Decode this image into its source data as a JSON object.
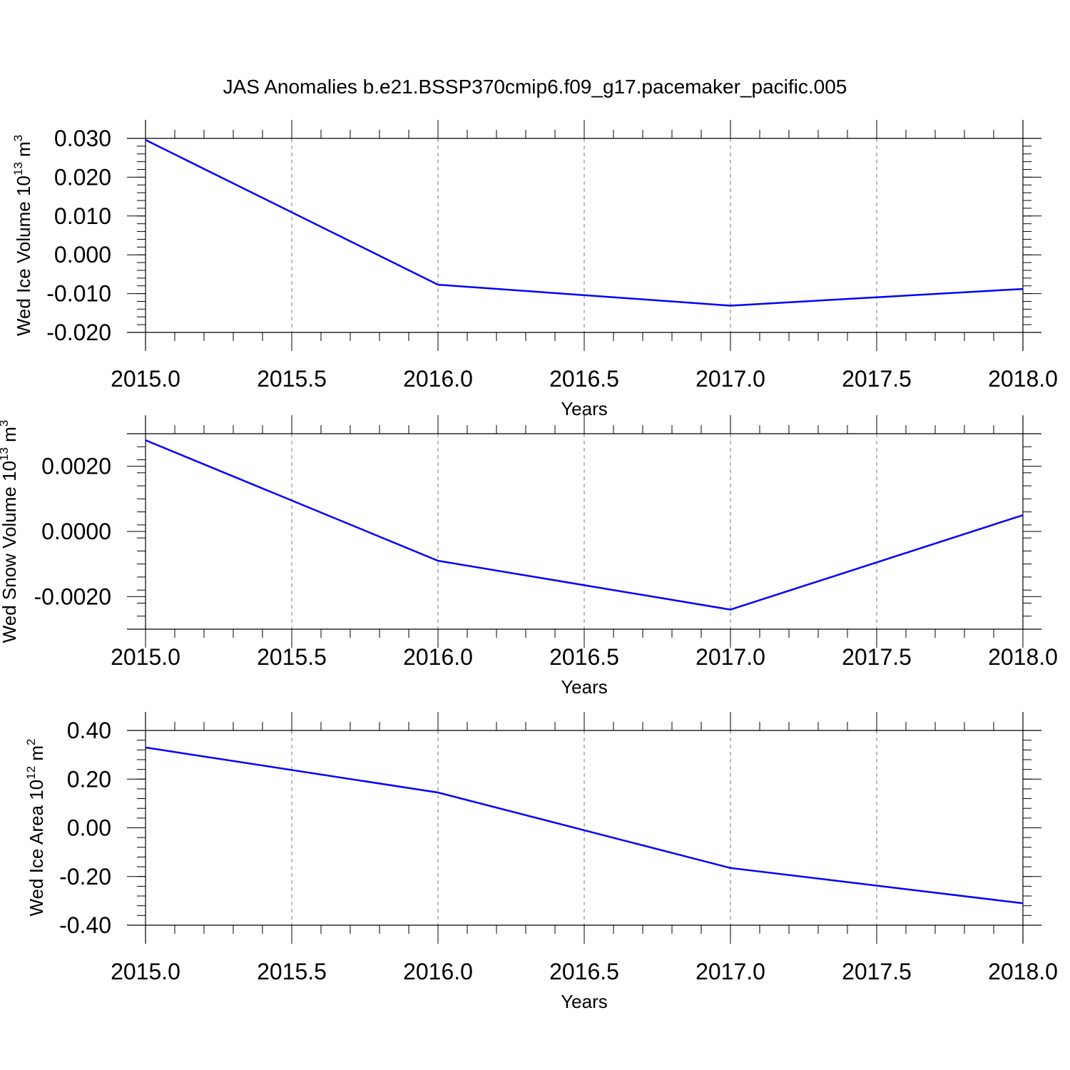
{
  "title": "JAS Anomalies b.e21.BSSP370cmip6.f09_g17.pacemaker_pacific.005",
  "chart_data": [
    {
      "type": "line",
      "ylabel": {
        "text": "Wed Ice Volume 10",
        "sup": "13",
        "unit": " m",
        "unit_sup": "3"
      },
      "xlabel": "Years",
      "xlim": [
        2015.0,
        2018.0
      ],
      "ylim": [
        -0.02,
        0.03
      ],
      "xticks": [
        "2015.0",
        "2015.5",
        "2016.0",
        "2016.5",
        "2017.0",
        "2017.5",
        "2018.0"
      ],
      "yticks": [
        {
          "value": 0.03,
          "label": "0.030"
        },
        {
          "value": 0.02,
          "label": "0.020"
        },
        {
          "value": 0.01,
          "label": "0.010"
        },
        {
          "value": 0.0,
          "label": "0.000"
        },
        {
          "value": -0.01,
          "label": "-0.010"
        },
        {
          "value": -0.02,
          "label": "-0.020"
        }
      ],
      "series_color": "#0000ff",
      "x": [
        2015,
        2016,
        2017,
        2018
      ],
      "y": [
        0.0296,
        -0.0077,
        -0.0131,
        -0.0088
      ]
    },
    {
      "type": "line",
      "ylabel": {
        "text": "Wed Snow Volume 10",
        "sup": "13",
        "unit": " m",
        "unit_sup": "3"
      },
      "xlabel": "Years",
      "xlim": [
        2015.0,
        2018.0
      ],
      "ylim": [
        -0.003,
        0.003
      ],
      "xticks": [
        "2015.0",
        "2015.5",
        "2016.0",
        "2016.5",
        "2017.0",
        "2017.5",
        "2018.0"
      ],
      "yticks": [
        {
          "value": 0.002,
          "label": "0.0020"
        },
        {
          "value": 0.0,
          "label": "0.0000"
        },
        {
          "value": -0.002,
          "label": "-0.0020"
        }
      ],
      "series_color": "#0000ff",
      "x": [
        2015,
        2016,
        2017,
        2018
      ],
      "y": [
        0.0028,
        -0.0009,
        -0.0024,
        0.0005
      ]
    },
    {
      "type": "line",
      "ylabel": {
        "text": "Wed Ice Area 10",
        "sup": "12",
        "unit": " m",
        "unit_sup": "2"
      },
      "xlabel": "Years",
      "xlim": [
        2015.0,
        2018.0
      ],
      "ylim": [
        -0.4,
        0.4
      ],
      "xticks": [
        "2015.0",
        "2015.5",
        "2016.0",
        "2016.5",
        "2017.0",
        "2017.5",
        "2018.0"
      ],
      "yticks": [
        {
          "value": 0.4,
          "label": "0.40"
        },
        {
          "value": 0.2,
          "label": "0.20"
        },
        {
          "value": 0.0,
          "label": "0.00"
        },
        {
          "value": -0.2,
          "label": "-0.20"
        },
        {
          "value": -0.4,
          "label": "-0.40"
        }
      ],
      "series_color": "#0000ff",
      "x": [
        2015,
        2016,
        2017,
        2018
      ],
      "y": [
        0.33,
        0.145,
        -0.165,
        -0.31
      ]
    }
  ]
}
